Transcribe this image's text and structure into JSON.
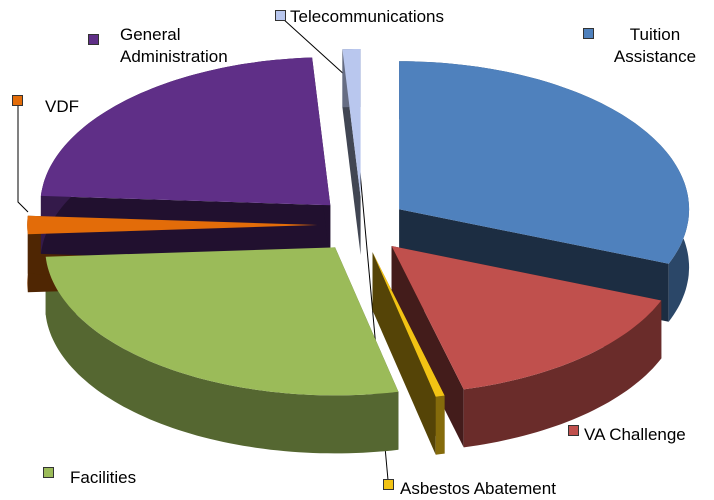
{
  "chart_data": {
    "type": "pie",
    "categories": [
      "Tuition Assistance",
      "VA Challenge",
      "Asbestos Abatement",
      "Facilities",
      "VDF",
      "General Administration",
      "Telecommunications"
    ],
    "values": [
      31,
      15,
      0.5,
      27.5,
      2,
      23,
      1
    ],
    "colors": [
      "#4f81bd",
      "#c0504d",
      "#f2c314",
      "#9bbb59",
      "#e36c09",
      "#5f2f87",
      "#b9c7ee"
    ]
  }
}
